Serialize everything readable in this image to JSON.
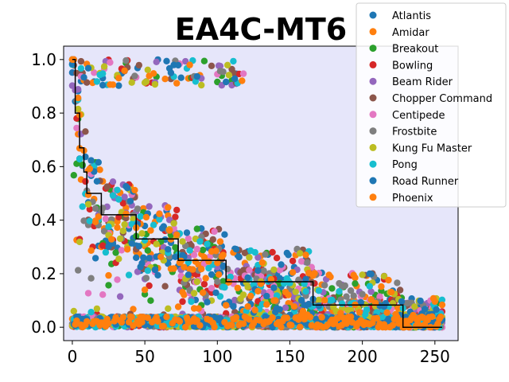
{
  "chart_data": {
    "type": "scatter",
    "title": "EA4C-MT6",
    "xlabel": "",
    "ylabel": "",
    "xlim": [
      -6,
      266
    ],
    "ylim": [
      -0.05,
      1.05
    ],
    "xticks": [
      0,
      50,
      100,
      150,
      200,
      250
    ],
    "xtick_labels": [
      "0",
      "50",
      "100",
      "150",
      "200",
      "250"
    ],
    "yticks": [
      0.0,
      0.2,
      0.4,
      0.6,
      0.8,
      1.0
    ],
    "ytick_labels": [
      "0.0",
      "0.2",
      "0.4",
      "0.6",
      "0.8",
      "1.0"
    ],
    "plot_background": "#e6e6fa",
    "legend_position": "top-right",
    "point_count_per_series": 256,
    "series": [
      {
        "name": "Atlantis",
        "color": "#1f77b4"
      },
      {
        "name": "Amidar",
        "color": "#ff7f0e"
      },
      {
        "name": "Breakout",
        "color": "#2ca02c"
      },
      {
        "name": "Bowling",
        "color": "#d62728"
      },
      {
        "name": "Beam Rider",
        "color": "#9467bd"
      },
      {
        "name": "Chopper Command",
        "color": "#8c564b"
      },
      {
        "name": "Centipede",
        "color": "#e377c2"
      },
      {
        "name": "Frostbite",
        "color": "#7f7f7f"
      },
      {
        "name": "Kung Fu Master",
        "color": "#bcbd22"
      },
      {
        "name": "Pong",
        "color": "#17becf"
      },
      {
        "name": "Road Runner",
        "color": "#1f77b4"
      },
      {
        "name": "Phoenix",
        "color": "#ff7f0e"
      }
    ],
    "step_line": {
      "color": "#000000",
      "x": [
        0,
        2,
        2,
        5,
        5,
        8,
        8,
        10,
        10,
        20,
        20,
        28,
        28,
        44,
        44,
        57,
        57,
        73,
        73,
        106,
        106,
        166,
        166,
        228,
        228,
        255
      ],
      "y": [
        1.0,
        1.0,
        0.8,
        0.8,
        0.67,
        0.67,
        0.58,
        0.58,
        0.5,
        0.5,
        0.42,
        0.42,
        0.42,
        0.42,
        0.33,
        0.33,
        0.33,
        0.33,
        0.25,
        0.25,
        0.17,
        0.17,
        0.083,
        0.083,
        0.0,
        0.0
      ]
    }
  }
}
